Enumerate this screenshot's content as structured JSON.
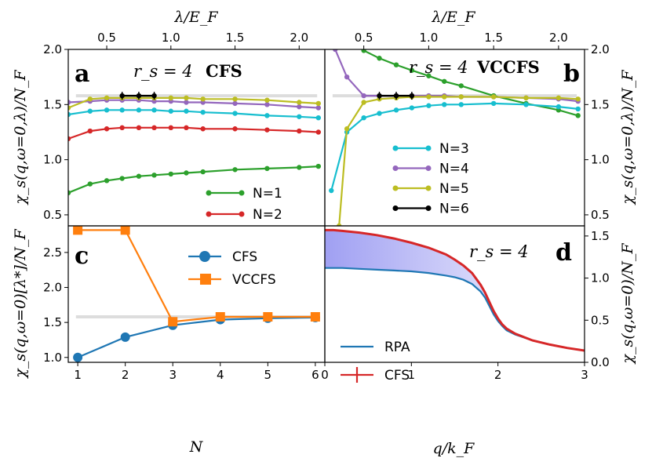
{
  "colors": {
    "N1": "#2ca02c",
    "N2": "#d62728",
    "N3": "#17becf",
    "N4": "#9467bd",
    "N5": "#bcbd22",
    "N6": "#000000",
    "CFS": "#1f77b4",
    "VCCFS": "#ff7f0e",
    "RPA": "#1f77b4",
    "CFS_d": "#d62728",
    "ref": "#dddddd",
    "fill": "#8f8ff0"
  },
  "labels": {
    "top_xlabel_a": "λ/E_F",
    "top_xlabel_b": "λ/E_F",
    "ylabel_a": "χ_s(q,ω=0,λ)/N_F",
    "ylabel_b": "χ_s(q,ω=0,λ)/N_F",
    "ylabel_c": "χ_s(q,ω=0)[λ*]/N_F",
    "ylabel_d": "χ_s(q,ω=0)/N_F",
    "xlabel_c": "N",
    "xlabel_d": "q/k_F"
  },
  "panels": {
    "a": {
      "letter": "a",
      "rs": "r_s = 4",
      "method": "CFS"
    },
    "b": {
      "letter": "b",
      "rs": "r_s = 4",
      "method": "VCCFS"
    },
    "c": {
      "letter": "c"
    },
    "d": {
      "letter": "d",
      "rs": "r_s = 4"
    }
  },
  "chart_data": [
    {
      "panel": "a",
      "type": "line",
      "xlabel": "λ/E_F",
      "ylabel": "χ_s(q,ω=0,λ)/N_F",
      "xlim": [
        0.2,
        2.2
      ],
      "ylim": [
        0.4,
        2.0
      ],
      "xticks": [
        "0.5",
        "1.0",
        "1.5",
        "2.0"
      ],
      "yticks": [
        "0.5",
        "1.0",
        "1.5",
        "2.0"
      ],
      "reference_line": 1.58,
      "legend_position": "lower-right",
      "series": [
        {
          "name": "N=1",
          "key": "N1",
          "in_legend": true,
          "x": [
            0.2,
            0.37,
            0.5,
            0.62,
            0.75,
            0.87,
            1.0,
            1.12,
            1.25,
            1.5,
            1.75,
            2.0,
            2.15
          ],
          "y": [
            0.7,
            0.78,
            0.81,
            0.83,
            0.85,
            0.86,
            0.87,
            0.88,
            0.89,
            0.91,
            0.92,
            0.93,
            0.94
          ]
        },
        {
          "name": "N=2",
          "key": "N2",
          "in_legend": true,
          "x": [
            0.2,
            0.37,
            0.5,
            0.62,
            0.75,
            0.87,
            1.0,
            1.12,
            1.25,
            1.5,
            1.75,
            2.0,
            2.15
          ],
          "y": [
            1.19,
            1.26,
            1.28,
            1.29,
            1.29,
            1.29,
            1.29,
            1.29,
            1.28,
            1.28,
            1.27,
            1.26,
            1.25
          ]
        },
        {
          "name": "N=3",
          "key": "N3",
          "in_legend": false,
          "x": [
            0.2,
            0.37,
            0.5,
            0.62,
            0.75,
            0.87,
            1.0,
            1.12,
            1.25,
            1.5,
            1.75,
            2.0,
            2.15
          ],
          "y": [
            1.41,
            1.44,
            1.45,
            1.45,
            1.45,
            1.45,
            1.44,
            1.44,
            1.43,
            1.42,
            1.4,
            1.39,
            1.38
          ]
        },
        {
          "name": "N=4",
          "key": "N4",
          "in_legend": false,
          "x": [
            0.2,
            0.37,
            0.5,
            0.62,
            0.75,
            0.87,
            1.0,
            1.12,
            1.25,
            1.5,
            1.75,
            2.0,
            2.15
          ],
          "y": [
            1.52,
            1.53,
            1.54,
            1.54,
            1.54,
            1.53,
            1.53,
            1.52,
            1.52,
            1.51,
            1.5,
            1.48,
            1.47
          ]
        },
        {
          "name": "N=5",
          "key": "N5",
          "in_legend": false,
          "x": [
            0.2,
            0.37,
            0.5,
            0.62,
            0.75,
            0.87,
            1.0,
            1.12,
            1.25,
            1.5,
            1.75,
            2.0,
            2.15
          ],
          "y": [
            1.47,
            1.55,
            1.56,
            1.56,
            1.56,
            1.56,
            1.56,
            1.56,
            1.55,
            1.55,
            1.54,
            1.52,
            1.51
          ]
        },
        {
          "name": "N=6",
          "key": "N6",
          "in_legend": false,
          "x": [
            0.62,
            0.75,
            0.87
          ],
          "y": [
            1.58,
            1.58,
            1.58
          ]
        }
      ]
    },
    {
      "panel": "b",
      "type": "line",
      "xlabel": "λ/E_F",
      "ylabel": "χ_s(q,ω=0,λ)/N_F",
      "xlim": [
        0.2,
        2.2
      ],
      "ylim": [
        0.4,
        2.0
      ],
      "xticks": [
        "0.5",
        "1.0",
        "1.5",
        "2.0"
      ],
      "yticks": [
        "0.5",
        "1.0",
        "1.5",
        "2.0"
      ],
      "reference_line": 1.58,
      "legend_position": "lower-center",
      "series": [
        {
          "name": "N=1",
          "key": "N1",
          "in_legend": false,
          "x": [
            0.37,
            0.5,
            0.62,
            0.75,
            0.87,
            1.0,
            1.12,
            1.25,
            1.5,
            1.75,
            2.0,
            2.15
          ],
          "y": [
            2.2,
            1.99,
            1.92,
            1.86,
            1.81,
            1.76,
            1.71,
            1.67,
            1.58,
            1.51,
            1.45,
            1.4
          ]
        },
        {
          "name": "N=3",
          "key": "N3",
          "in_legend": true,
          "x": [
            0.25,
            0.37,
            0.5,
            0.62,
            0.75,
            0.87,
            1.0,
            1.12,
            1.25,
            1.5,
            1.75,
            2.0,
            2.15
          ],
          "y": [
            0.72,
            1.25,
            1.38,
            1.42,
            1.45,
            1.47,
            1.49,
            1.5,
            1.5,
            1.51,
            1.5,
            1.48,
            1.46
          ]
        },
        {
          "name": "N=4",
          "key": "N4",
          "in_legend": true,
          "x": [
            0.28,
            0.37,
            0.5,
            0.62,
            0.75,
            0.87,
            1.0,
            1.12,
            1.25,
            1.5,
            1.75,
            2.0,
            2.15
          ],
          "y": [
            2.0,
            1.75,
            1.58,
            1.58,
            1.58,
            1.58,
            1.58,
            1.58,
            1.57,
            1.57,
            1.56,
            1.55,
            1.53
          ]
        },
        {
          "name": "N=5",
          "key": "N5",
          "in_legend": true,
          "x": [
            0.31,
            0.37,
            0.5,
            0.62,
            0.75,
            0.87,
            1.0,
            1.12,
            1.25,
            1.5,
            1.75,
            2.0,
            2.15
          ],
          "y": [
            0.4,
            1.28,
            1.52,
            1.55,
            1.56,
            1.57,
            1.57,
            1.57,
            1.57,
            1.57,
            1.56,
            1.56,
            1.55
          ]
        },
        {
          "name": "N=6",
          "key": "N6",
          "in_legend": true,
          "x": [
            0.62,
            0.75,
            0.87
          ],
          "y": [
            1.58,
            1.58,
            1.58
          ]
        }
      ]
    },
    {
      "panel": "c",
      "type": "line",
      "xlabel": "N",
      "ylabel": "χ_s(q,ω=0)[λ*]/N_F",
      "xlim": [
        0.8,
        6.2
      ],
      "ylim": [
        0.93,
        2.88
      ],
      "xticks": [
        "1",
        "2",
        "3",
        "4",
        "5",
        "6"
      ],
      "yticks": [
        "1.0",
        "1.5",
        "2.0",
        "2.5"
      ],
      "reference_line": 1.58,
      "legend_position": "upper-right",
      "series": [
        {
          "name": "CFS",
          "key": "CFS",
          "marker": "circle",
          "x": [
            1,
            2,
            3,
            4,
            5,
            6
          ],
          "y": [
            1.0,
            1.29,
            1.46,
            1.54,
            1.56,
            1.57
          ]
        },
        {
          "name": "VCCFS",
          "key": "VCCFS",
          "marker": "square",
          "x": [
            1,
            2,
            3,
            4,
            5,
            6
          ],
          "y": [
            2.82,
            2.82,
            1.51,
            1.58,
            1.58,
            1.58
          ]
        }
      ]
    },
    {
      "panel": "d",
      "type": "area",
      "xlabel": "q/k_F",
      "ylabel": "χ_s(q,ω=0)/N_F",
      "xlim": [
        0,
        3
      ],
      "ylim": [
        0,
        1.62
      ],
      "xticks": [
        "0",
        "1",
        "2",
        "3"
      ],
      "yticks": [
        "0.0",
        "0.5",
        "1.0",
        "1.5"
      ],
      "legend_position": "lower-left",
      "series": [
        {
          "name": "RPA",
          "key": "RPA",
          "x": [
            0,
            0.2,
            0.4,
            0.6,
            0.8,
            1.0,
            1.2,
            1.4,
            1.5,
            1.6,
            1.7,
            1.8,
            1.85,
            1.9,
            1.95,
            2.0,
            2.05,
            2.1,
            2.2,
            2.4,
            2.6,
            2.8,
            3.0
          ],
          "y": [
            1.12,
            1.12,
            1.11,
            1.1,
            1.09,
            1.08,
            1.06,
            1.03,
            1.01,
            0.98,
            0.93,
            0.84,
            0.77,
            0.67,
            0.57,
            0.49,
            0.43,
            0.38,
            0.33,
            0.26,
            0.21,
            0.17,
            0.14
          ]
        },
        {
          "name": "CFS",
          "key": "CFS_d",
          "x": [
            0,
            0.1,
            0.2,
            0.4,
            0.6,
            0.8,
            1.0,
            1.2,
            1.4,
            1.5,
            1.6,
            1.7,
            1.8,
            1.85,
            1.9,
            1.95,
            2.0,
            2.05,
            2.1,
            2.2,
            2.4,
            2.6,
            2.8,
            3.0
          ],
          "y": [
            1.57,
            1.57,
            1.56,
            1.54,
            1.51,
            1.47,
            1.42,
            1.36,
            1.28,
            1.22,
            1.15,
            1.06,
            0.92,
            0.83,
            0.72,
            0.61,
            0.52,
            0.45,
            0.4,
            0.34,
            0.26,
            0.21,
            0.17,
            0.14
          ]
        }
      ]
    }
  ]
}
